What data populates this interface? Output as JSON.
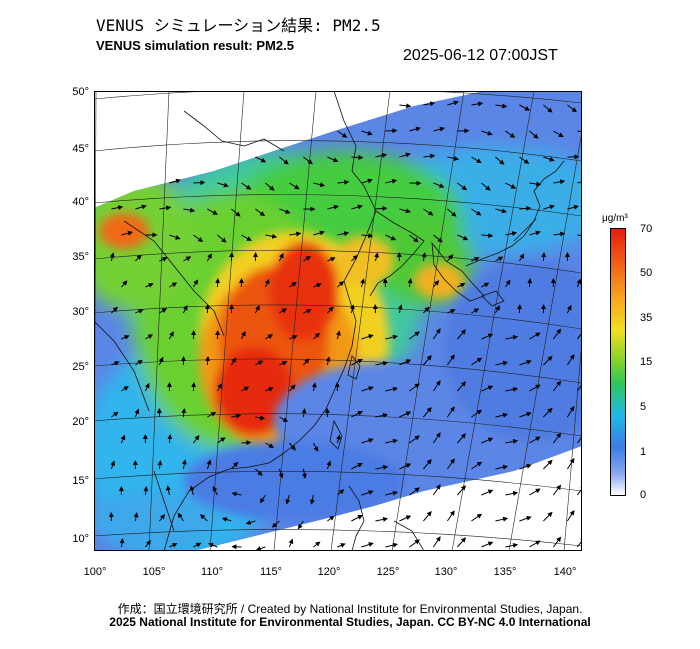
{
  "header": {
    "title_jp": "VENUS シミュレーション結果: PM2.5",
    "title_en": "VENUS simulation result: PM2.5",
    "timestamp": "2025-06-12 07:00JST"
  },
  "map": {
    "lat_ticks": [
      "50°",
      "45°",
      "40°",
      "35°",
      "30°",
      "25°",
      "20°",
      "15°",
      "10°"
    ],
    "lon_ticks": [
      "100°",
      "105°",
      "110°",
      "115°",
      "120°",
      "125°",
      "130°",
      "135°",
      "140°"
    ],
    "colors": {
      "ocean": "#4f7be0",
      "land_low": "#2db8f0",
      "mid": "#38d24a",
      "high": "#f0e020",
      "max": "#e62010"
    }
  },
  "colorbar": {
    "unit": "μg/m³",
    "ticks": [
      "70",
      "50",
      "35",
      "15",
      "5",
      "1",
      "0"
    ]
  },
  "footer": {
    "credit": "作成：国立環境研究所 / Created by National Institute for Environmental Studies, Japan.",
    "copyright": "2025 National Institute for Environmental Studies, Japan. CC BY-NC 4.0 International"
  }
}
